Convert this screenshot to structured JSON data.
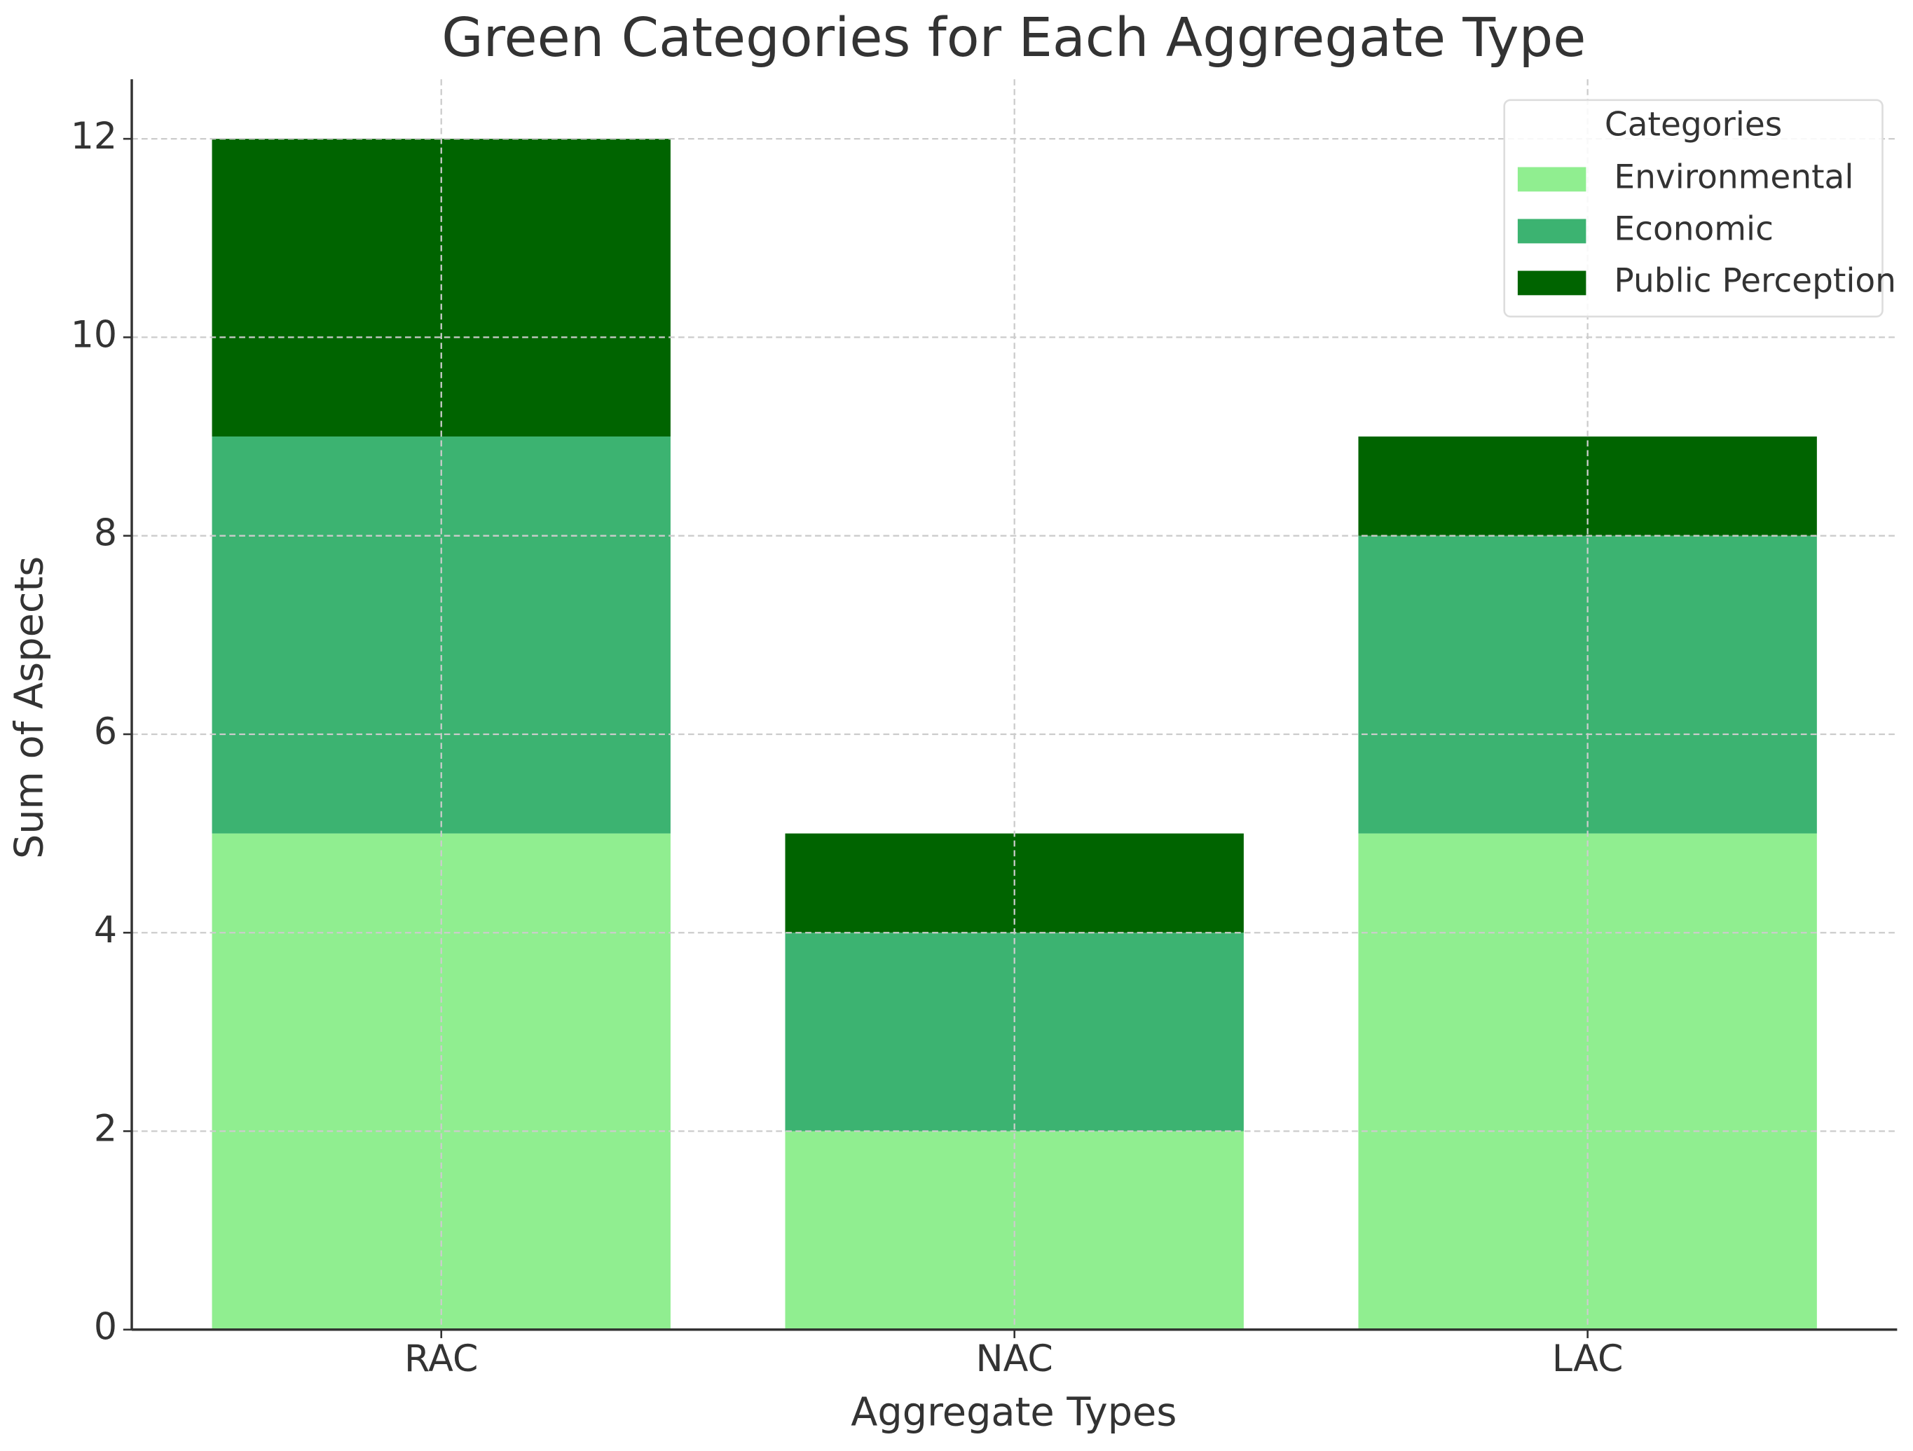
{
  "chart_data": {
    "type": "stacked_bar",
    "title": "Green Categories for Each Aggregate Type",
    "x_label": "Aggregate Types",
    "y_label": "Sum of Aspects",
    "categories": [
      "RAC",
      "NAC",
      "LAC"
    ],
    "series": [
      {
        "name": "Environmental",
        "color": "#90ee90",
        "values": [
          5,
          2,
          5
        ]
      },
      {
        "name": "Economic",
        "color": "#3cb371",
        "values": [
          4,
          2,
          3
        ]
      },
      {
        "name": "Public Perception",
        "color": "#006400",
        "values": [
          3,
          1,
          1
        ]
      }
    ],
    "ylim": [
      0,
      12.6
    ],
    "yticks": [
      0,
      2,
      4,
      6,
      8,
      10,
      12
    ],
    "grid": true,
    "legend_title": "Categories",
    "legend_position": "upper right"
  }
}
